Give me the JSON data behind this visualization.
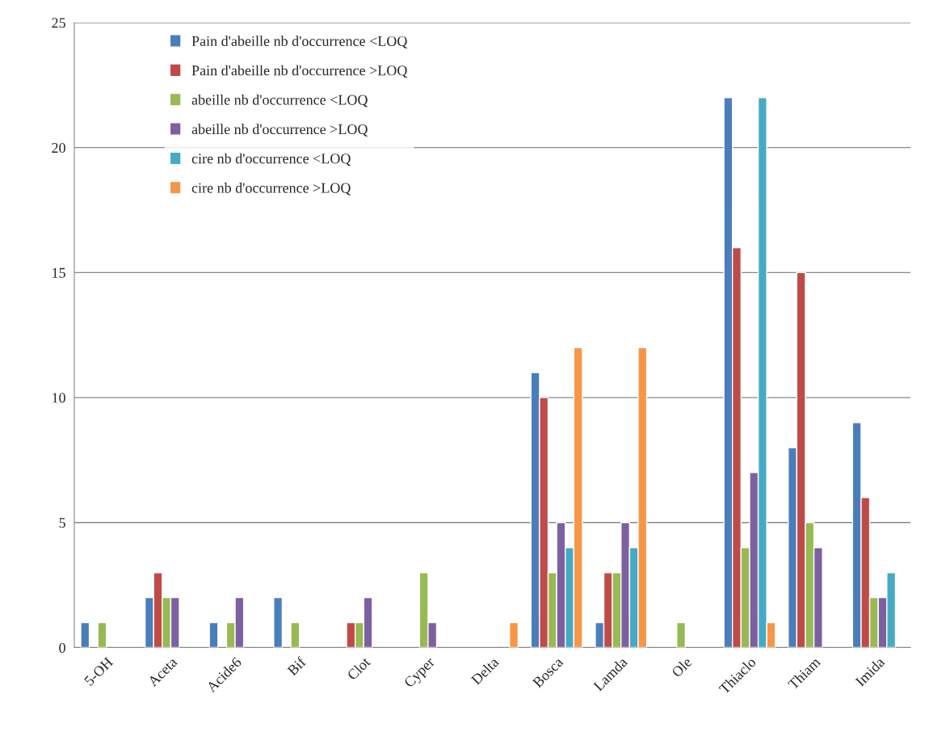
{
  "chart_data": {
    "type": "bar",
    "categories": [
      "5-OH",
      "Aceta",
      "Acide6",
      "Bif",
      "Clot",
      "Cyper",
      "Delta",
      "Bosca",
      "Lamda",
      "Ole",
      "Thiaclo",
      "Thiam",
      "Imida"
    ],
    "series": [
      {
        "name": "Pain d'abeille nb d'occurrence <LOQ",
        "color": "#4a7ebb",
        "values": [
          1,
          2,
          1,
          2,
          null,
          null,
          null,
          11,
          1,
          null,
          22,
          8,
          9
        ]
      },
      {
        "name": "Pain d'abeille nb d'occurrence >LOQ",
        "color": "#be4b48",
        "values": [
          null,
          3,
          null,
          null,
          1,
          null,
          null,
          10,
          3,
          null,
          16,
          15,
          6
        ]
      },
      {
        "name": "abeille nb d'occurrence <LOQ",
        "color": "#98b954",
        "values": [
          1,
          2,
          1,
          1,
          1,
          3,
          null,
          3,
          3,
          1,
          4,
          5,
          2
        ]
      },
      {
        "name": "abeille nb d'occurrence >LOQ",
        "color": "#7d60a0",
        "values": [
          null,
          2,
          2,
          null,
          2,
          1,
          null,
          5,
          5,
          null,
          7,
          4,
          2
        ]
      },
      {
        "name": "cire nb d'occurrence <LOQ",
        "color": "#46aac5",
        "values": [
          null,
          null,
          null,
          null,
          null,
          null,
          null,
          4,
          4,
          null,
          22,
          null,
          3
        ]
      },
      {
        "name": "cire nb d'occurrence >LOQ",
        "color": "#f79646",
        "values": [
          null,
          null,
          null,
          null,
          null,
          null,
          1,
          12,
          12,
          null,
          1,
          null,
          null
        ]
      }
    ],
    "ylim": [
      0,
      25
    ],
    "yticks": [
      0,
      5,
      10,
      15,
      20,
      25
    ],
    "grid": "y",
    "legend": "top left"
  }
}
